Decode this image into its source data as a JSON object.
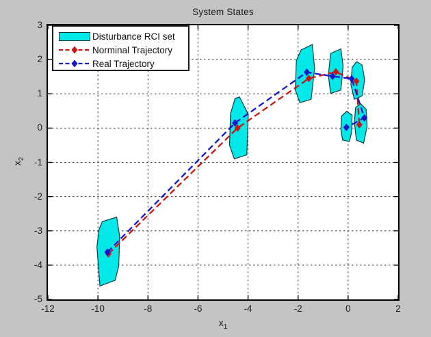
{
  "window": {
    "title": "System States"
  },
  "colors": {
    "figure_background": "#c4c4c4",
    "plot_background": "#ffffff",
    "axis_line": "#000000",
    "grid_line": "#333333",
    "tick_text": "#1c1c1c",
    "legend_border": "#1b1b1b"
  },
  "legend": {
    "position": "top-left",
    "rci_label": "Disturbance RCI set",
    "nominal_label": "Norminal Trajectory",
    "real_label": "Real Trajectory"
  },
  "chart_data": {
    "type": "line",
    "title": "System States",
    "xlabel": {
      "base": "x",
      "sub": "1"
    },
    "ylabel": {
      "base": "x",
      "sub": "2"
    },
    "xlim": [
      -12,
      2
    ],
    "ylim": [
      -5,
      3
    ],
    "xticks": [
      -12,
      -10,
      -8,
      -6,
      -4,
      -2,
      0,
      2
    ],
    "yticks": [
      -5,
      -4,
      -3,
      -2,
      -1,
      0,
      1,
      2,
      3
    ],
    "grid": "on",
    "grid_style": "dotted",
    "legend_position": "top-left",
    "series": [
      {
        "name": "Norminal Trajectory",
        "color": "#cc1414",
        "line_style": "dashed",
        "marker": "diamond",
        "points": [
          [
            -9.58,
            -3.67
          ],
          [
            -4.42,
            0.0
          ],
          [
            -1.57,
            1.45
          ],
          [
            -0.49,
            1.64
          ],
          [
            0.33,
            1.37
          ],
          [
            0.45,
            0.1
          ]
        ]
      },
      {
        "name": "Real Trajectory",
        "color": "#1414cc",
        "line_style": "dashed",
        "marker": "diamond",
        "points": [
          [
            -9.62,
            -3.62
          ],
          [
            -4.52,
            0.15
          ],
          [
            -1.65,
            1.63
          ],
          [
            -0.62,
            1.51
          ],
          [
            0.14,
            1.44
          ],
          [
            0.65,
            0.3
          ],
          [
            -0.07,
            0.02
          ]
        ]
      }
    ],
    "rci_sets": {
      "name": "Disturbance RCI set",
      "fill": "#00e8e8",
      "edge": "#123a3a",
      "polygons": [
        [
          [
            -9.96,
            -2.97
          ],
          [
            -9.83,
            -2.73
          ],
          [
            -9.25,
            -2.6
          ],
          [
            -9.13,
            -3.17
          ],
          [
            -9.17,
            -4.03
          ],
          [
            -9.31,
            -4.44
          ],
          [
            -9.92,
            -4.61
          ],
          [
            -10.04,
            -3.47
          ]
        ],
        [
          [
            -4.7,
            0.42
          ],
          [
            -4.52,
            0.86
          ],
          [
            -4.34,
            0.91
          ],
          [
            -3.99,
            0.4
          ],
          [
            -4.05,
            -0.78
          ],
          [
            -4.55,
            -0.9
          ],
          [
            -4.74,
            -0.5
          ]
        ],
        [
          [
            -2.07,
            1.97
          ],
          [
            -1.88,
            2.28
          ],
          [
            -1.43,
            2.44
          ],
          [
            -1.34,
            1.74
          ],
          [
            -1.48,
            0.84
          ],
          [
            -1.93,
            0.74
          ],
          [
            -2.11,
            1.11
          ]
        ],
        [
          [
            -0.79,
            1.54
          ],
          [
            -0.7,
            2.18
          ],
          [
            -0.29,
            2.31
          ],
          [
            -0.2,
            1.81
          ],
          [
            -0.29,
            1.11
          ],
          [
            -0.7,
            1.01
          ]
        ],
        [
          [
            0.11,
            1.27
          ],
          [
            0.16,
            1.77
          ],
          [
            0.34,
            1.94
          ],
          [
            0.56,
            1.84
          ],
          [
            0.66,
            1.41
          ],
          [
            0.56,
            0.94
          ],
          [
            0.25,
            0.84
          ]
        ],
        [
          [
            -0.29,
            -0.05
          ],
          [
            -0.26,
            0.35
          ],
          [
            -0.06,
            0.49
          ],
          [
            0.16,
            0.38
          ],
          [
            0.14,
            -0.12
          ],
          [
            0.05,
            -0.39
          ],
          [
            -0.22,
            -0.35
          ]
        ],
        [
          [
            0.25,
            0.17
          ],
          [
            0.3,
            0.6
          ],
          [
            0.5,
            0.71
          ],
          [
            0.72,
            0.55
          ],
          [
            0.76,
            0.05
          ],
          [
            0.62,
            -0.44
          ],
          [
            0.33,
            -0.35
          ]
        ]
      ]
    }
  }
}
